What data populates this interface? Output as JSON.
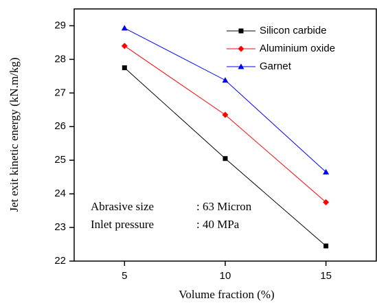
{
  "chart_data": {
    "type": "line",
    "xlabel": "Volume fraction (%)",
    "ylabel": "Jet exit kinetic energy (kN.m/kg)",
    "x": [
      5,
      10,
      15
    ],
    "series": [
      {
        "name": "Silicon carbide",
        "color": "#000000",
        "marker": "square",
        "values": [
          27.75,
          25.05,
          22.45
        ]
      },
      {
        "name": "Aluminium oxide",
        "color": "#ff0000",
        "marker": "diamond",
        "values": [
          28.4,
          26.35,
          23.75
        ]
      },
      {
        "name": "Garnet",
        "color": "#0000ff",
        "marker": "triangle",
        "values": [
          28.93,
          27.38,
          24.65
        ]
      }
    ],
    "xlim": [
      2.5,
      17.5
    ],
    "xticks": [
      5,
      10,
      15
    ],
    "ylim": [
      22,
      29.5
    ],
    "yticks": [
      22,
      23,
      24,
      25,
      26,
      27,
      28,
      29
    ],
    "legend": "upper right",
    "annotations": [
      [
        "Abrasive size",
        ": 63 Micron"
      ],
      [
        "Inlet pressure",
        ": 40 MPa"
      ]
    ]
  }
}
